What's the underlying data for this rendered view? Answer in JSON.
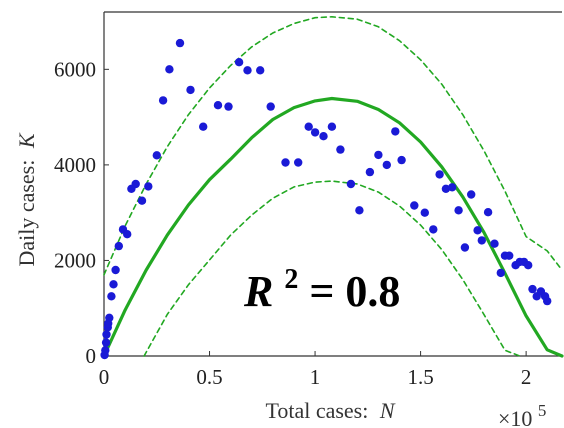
{
  "chart_data": {
    "type": "scatter",
    "xlabel": "Total cases:",
    "xlabel_var": "N",
    "ylabel": "Daily cases:",
    "ylabel_var": "K",
    "x_multiplier": "×10",
    "x_multiplier_exp": "5",
    "xlim": [
      0,
      2.17
    ],
    "ylim": [
      0,
      7200
    ],
    "x_ticks": [
      0,
      0.5,
      1,
      1.5,
      2
    ],
    "x_tick_labels": [
      "0",
      "0.5",
      "1",
      "1.5",
      "2"
    ],
    "y_ticks": [
      0,
      2000,
      4000,
      6000
    ],
    "y_tick_labels": [
      "0",
      "2000",
      "4000",
      "6000"
    ],
    "annotation": {
      "symbol": "R",
      "exponent": "2",
      "text": "= 0.8"
    },
    "colors": {
      "points": "#1a1ad6",
      "fit": "#22a822",
      "axes": "#333333"
    },
    "series": [
      {
        "type": "scatter",
        "x": [
          0.003,
          0.006,
          0.01,
          0.012,
          0.018,
          0.02,
          0.025,
          0.035,
          0.045,
          0.055,
          0.07,
          0.09,
          0.11,
          0.13,
          0.15,
          0.18,
          0.21,
          0.25,
          0.28,
          0.31,
          0.36,
          0.41,
          0.47,
          0.54,
          0.59,
          0.64,
          0.68,
          0.74,
          0.79,
          0.86,
          0.92,
          0.97,
          1.0,
          1.04,
          1.08,
          1.12,
          1.17,
          1.21,
          1.26,
          1.3,
          1.34,
          1.38,
          1.41,
          1.47,
          1.52,
          1.56,
          1.59,
          1.62,
          1.65,
          1.68,
          1.71,
          1.74,
          1.77,
          1.79,
          1.82,
          1.85,
          1.88,
          1.9,
          1.92,
          1.95,
          1.97,
          1.99,
          2.01,
          2.03,
          2.05,
          2.07,
          2.09,
          2.1
        ],
        "y": [
          20,
          120,
          280,
          450,
          600,
          680,
          800,
          1250,
          1500,
          1800,
          2300,
          2650,
          2550,
          3500,
          3600,
          3250,
          3550,
          4200,
          5350,
          6000,
          6550,
          5570,
          4800,
          5250,
          5220,
          6150,
          5980,
          5980,
          5220,
          4050,
          4050,
          4800,
          4680,
          4600,
          4800,
          4320,
          3600,
          3050,
          3850,
          4210,
          4000,
          4700,
          4100,
          3150,
          3000,
          2650,
          3800,
          3500,
          3530,
          3050,
          2270,
          3380,
          2630,
          2420,
          3010,
          2350,
          1740,
          2100,
          2100,
          1900,
          1970,
          1970,
          1900,
          1400,
          1250,
          1350,
          1250,
          1150
        ]
      },
      {
        "type": "line",
        "x": [
          0,
          0.1,
          0.2,
          0.3,
          0.4,
          0.5,
          0.6,
          0.7,
          0.8,
          0.9,
          1.0,
          1.08,
          1.2,
          1.3,
          1.4,
          1.5,
          1.6,
          1.7,
          1.8,
          1.9,
          2.0,
          2.1,
          2.17
        ],
        "y": [
          0,
          960,
          1800,
          2530,
          3160,
          3690,
          4120,
          4570,
          4950,
          5200,
          5340,
          5390,
          5330,
          5160,
          4880,
          4480,
          3960,
          3330,
          2590,
          1730,
          840,
          130,
          0
        ]
      },
      {
        "type": "line",
        "dash": "dashed",
        "x": [
          0,
          0.1,
          0.2,
          0.3,
          0.4,
          0.5,
          0.6,
          0.7,
          0.8,
          0.9,
          1.0,
          1.08,
          1.2,
          1.3,
          1.4,
          1.5,
          1.6,
          1.7,
          1.8,
          1.9,
          2.0,
          2.1,
          2.17
        ],
        "y": [
          1700,
          2720,
          3600,
          4380,
          5050,
          5610,
          6080,
          6470,
          6760,
          6960,
          7080,
          7100,
          7050,
          6890,
          6600,
          6200,
          5690,
          5050,
          4300,
          3450,
          2500,
          2200,
          1800
        ]
      },
      {
        "type": "line",
        "dash": "dashed",
        "x": [
          0.19,
          0.3,
          0.4,
          0.5,
          0.6,
          0.7,
          0.8,
          0.9,
          1.0,
          1.08,
          1.2,
          1.3,
          1.4,
          1.5,
          1.6,
          1.7,
          1.8,
          1.9,
          1.97
        ],
        "y": [
          0,
          870,
          1490,
          2010,
          2530,
          2950,
          3300,
          3540,
          3640,
          3660,
          3600,
          3430,
          3140,
          2740,
          2230,
          1600,
          870,
          120,
          0
        ]
      }
    ]
  }
}
